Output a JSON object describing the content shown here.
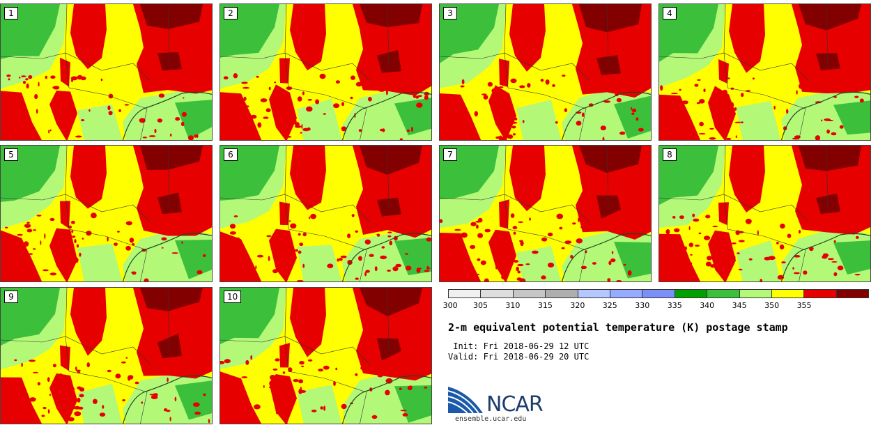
{
  "panels": [
    "1",
    "2",
    "3",
    "4",
    "5",
    "6",
    "7",
    "8",
    "9",
    "10"
  ],
  "legend": {
    "colors": [
      "#f0f0f0",
      "#dedede",
      "#c6c6c6",
      "#aeaeae",
      "#b4c8ff",
      "#96aaff",
      "#7a90f8",
      "#00a000",
      "#3cc03c",
      "#b4f878",
      "#ffff00",
      "#e60000",
      "#820000"
    ],
    "ticks": [
      "300",
      "305",
      "310",
      "315",
      "320",
      "325",
      "330",
      "335",
      "340",
      "345",
      "350",
      "355"
    ]
  },
  "title": "2-m equivalent potential temperature (K) postage stamp",
  "init": " Init: Fri 2018-06-29 12 UTC",
  "valid": "Valid: Fri 2018-06-29 20 UTC",
  "logo": {
    "name": "NCAR",
    "url": "ensemble.ucar.edu"
  }
}
